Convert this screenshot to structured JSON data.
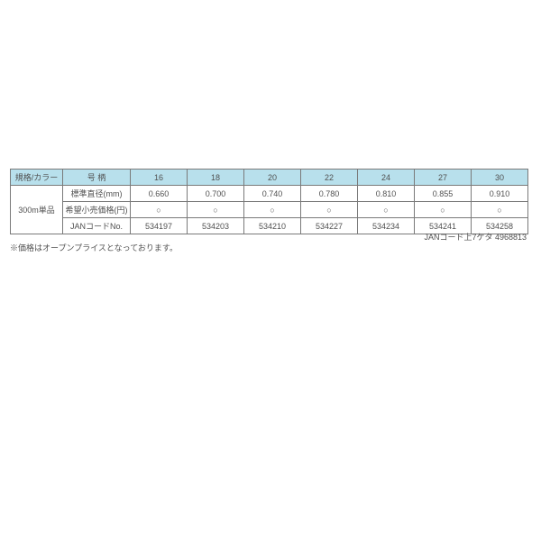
{
  "colors": {
    "header_bg": "#b8e0ec",
    "border": "#7a7a7a",
    "text": "#505050",
    "page_bg": "#ffffff"
  },
  "table": {
    "header": {
      "spec_color": "規格/カラー",
      "attr": "号 柄",
      "values": [
        "16",
        "18",
        "20",
        "22",
        "24",
        "27",
        "30"
      ]
    },
    "spec_label": "300m単品",
    "rows": [
      {
        "label": "標準直径(mm)",
        "cells": [
          "0.660",
          "0.700",
          "0.740",
          "0.780",
          "0.810",
          "0.855",
          "0.910"
        ]
      },
      {
        "label": "希望小売価格(円)",
        "cells": [
          "○",
          "○",
          "○",
          "○",
          "○",
          "○",
          "○"
        ]
      },
      {
        "label": "JANコードNo.",
        "cells": [
          "534197",
          "534203",
          "534210",
          "534227",
          "534234",
          "534241",
          "534258"
        ]
      }
    ]
  },
  "notes": {
    "jan_prefix": "JANコード上7ケタ 4968813",
    "price_note": "※価格はオープンプライスとなっております。"
  }
}
